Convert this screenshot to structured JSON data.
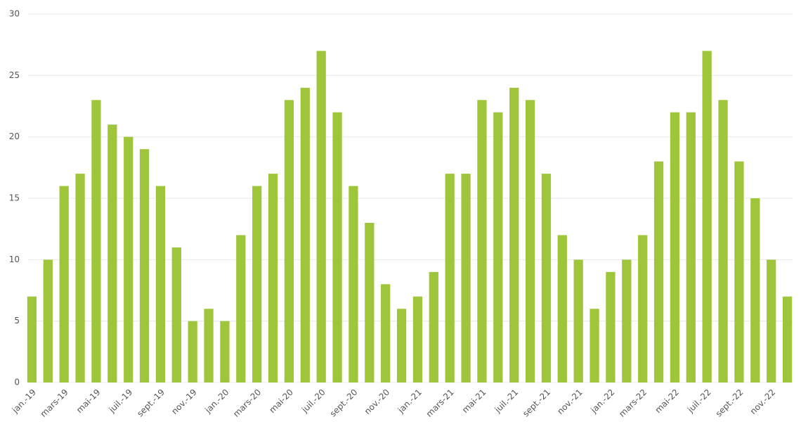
{
  "chart_data": {
    "type": "bar",
    "categories": [
      "jan.-19",
      null,
      "mars-19",
      null,
      "mai-19",
      null,
      "juil.-19",
      null,
      "sept.-19",
      null,
      "nov.-19",
      null,
      "jan.-20",
      null,
      "mars-20",
      null,
      "mai-20",
      null,
      "juil.-20",
      null,
      "sept.-20",
      null,
      "nov.-20",
      null,
      "jan.-21",
      null,
      "mars-21",
      null,
      "mai-21",
      null,
      "juil.-21",
      null,
      "sept.-21",
      null,
      "nov.-21",
      null,
      "jan.-22",
      null,
      "mars-22",
      null,
      "mai-22",
      null,
      "juil.-22",
      null,
      "sept.-22",
      null,
      "nov.-22",
      null
    ],
    "values": [
      7,
      10,
      16,
      17,
      23,
      21,
      20,
      19,
      16,
      11,
      5,
      6,
      5,
      12,
      16,
      17,
      23,
      24,
      27,
      22,
      16,
      13,
      8,
      6,
      7,
      9,
      17,
      17,
      23,
      22,
      24,
      23,
      17,
      12,
      10,
      6,
      9,
      10,
      12,
      18,
      22,
      22,
      27,
      23,
      18,
      15,
      10,
      7
    ],
    "color": "#9fc63b",
    "ylim": [
      0,
      30
    ],
    "yticks": [
      0,
      5,
      10,
      15,
      20,
      25,
      30
    ],
    "grid": true
  }
}
